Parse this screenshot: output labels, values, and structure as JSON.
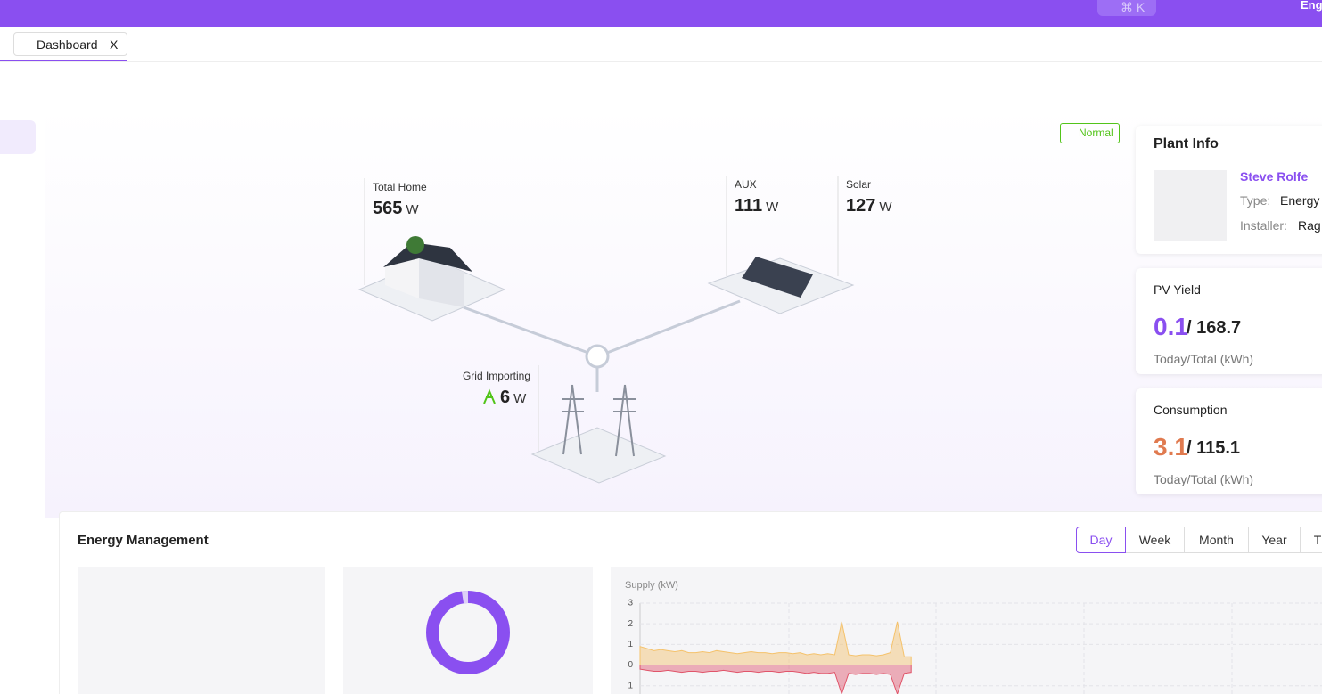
{
  "top_bar": {
    "search_shortcut": "⌘ K",
    "language": "Eng"
  },
  "tabs": [
    {
      "label": "Dashboard",
      "close": "X"
    }
  ],
  "flow": {
    "status": "Normal",
    "home": {
      "label": "Total Home",
      "value": "565",
      "unit": "W"
    },
    "aux": {
      "label": "AUX",
      "value": "111",
      "unit": "W"
    },
    "solar": {
      "label": "Solar",
      "value": "127",
      "unit": "W"
    },
    "grid": {
      "label": "Grid Importing",
      "value": "6",
      "unit": "W"
    }
  },
  "plant_info": {
    "title": "Plant Info",
    "name": "Steve Rolfe",
    "type_label": "Type:",
    "type_value": "Energy",
    "installer_label": "Installer:",
    "installer_value": "Rag"
  },
  "pv_yield": {
    "title": "PV Yield",
    "today": "0.1",
    "total": "/ 168.7",
    "caption": "Today/Total (kWh)"
  },
  "consumption": {
    "title": "Consumption",
    "today": "3.1",
    "total": "/ 115.1",
    "caption": "Today/Total (kWh)"
  },
  "energy_management": {
    "title": "Energy Management",
    "periods": [
      "Day",
      "Week",
      "Month",
      "Year",
      "T"
    ],
    "chart": {
      "type": "area",
      "axis_label": "Supply (kW)",
      "ylim": [
        -1.4,
        3
      ],
      "yticks": [
        3,
        2,
        1,
        0,
        {
          "value": -1,
          "label": "1"
        }
      ],
      "grid": true,
      "series": [
        {
          "color": "#f5c26b",
          "values": [
            0.9,
            0.8,
            0.7,
            0.75,
            0.7,
            0.65,
            0.7,
            0.6,
            0.6,
            0.65,
            0.6,
            0.7,
            0.65,
            0.6,
            0.55,
            0.6,
            0.65,
            0.6,
            0.6,
            0.55,
            0.6,
            0.6,
            0.55,
            0.6,
            0.5,
            0.55,
            0.5,
            0.55,
            0.5,
            2.1,
            0.5,
            0.45,
            0.5,
            0.5,
            0.45,
            0.5,
            0.6,
            2.1,
            0.4,
            0.4
          ]
        },
        {
          "color": "#e0556a",
          "values": [
            -0.2,
            -0.25,
            -0.3,
            -0.3,
            -0.25,
            -0.3,
            -0.35,
            -0.3,
            -0.3,
            -0.35,
            -0.3,
            -0.3,
            -0.25,
            -0.3,
            -0.35,
            -0.3,
            -0.3,
            -0.35,
            -0.3,
            -0.3,
            -0.35,
            -0.3,
            -0.3,
            -0.35,
            -0.4,
            -0.35,
            -0.4,
            -0.4,
            -0.35,
            -1.4,
            -0.4,
            -0.45,
            -0.4,
            -0.4,
            -0.45,
            -0.4,
            -0.45,
            -1.4,
            -0.4,
            -0.35
          ]
        }
      ]
    }
  }
}
